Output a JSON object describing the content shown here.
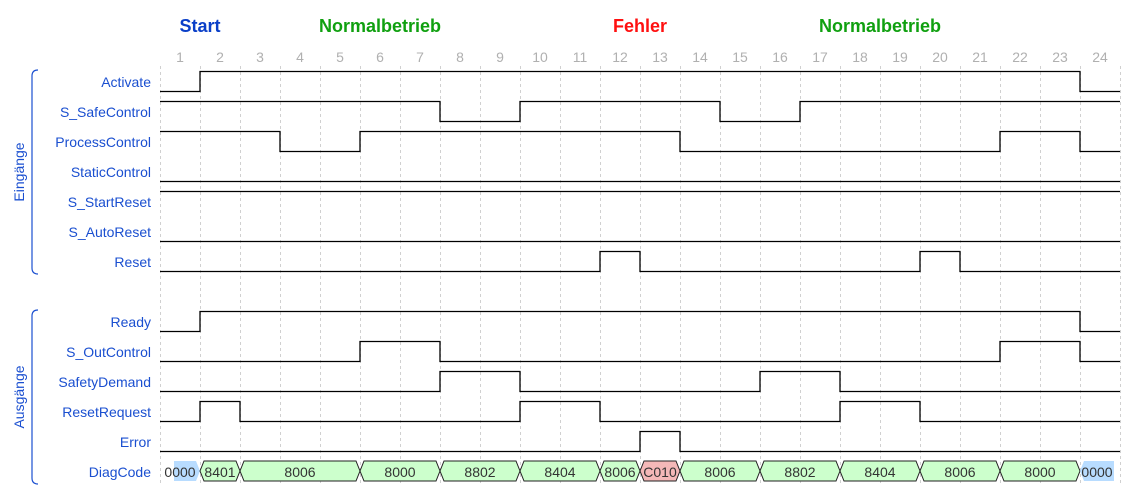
{
  "phases": [
    {
      "label": "Start",
      "from": 1,
      "to": 2,
      "color": "#0a3fc8"
    },
    {
      "label": "Normalbetrieb",
      "from": 3,
      "to": 9,
      "color": "#10a010"
    },
    {
      "label": "Fehler",
      "from": 12,
      "to": 13,
      "color": "#ff1010"
    },
    {
      "label": "Normalbetrieb",
      "from": 14,
      "to": 23,
      "color": "#10a010"
    }
  ],
  "columns": [
    "1",
    "2",
    "3",
    "4",
    "5",
    "6",
    "7",
    "8",
    "9",
    "10",
    "11",
    "12",
    "13",
    "14",
    "15",
    "16",
    "17",
    "18",
    "19",
    "20",
    "21",
    "22",
    "23",
    "24"
  ],
  "groups": [
    {
      "label": "Eingänge",
      "signals": [
        {
          "name": "Activate",
          "levels": [
            0,
            1,
            1,
            1,
            1,
            1,
            1,
            1,
            1,
            1,
            1,
            1,
            1,
            1,
            1,
            1,
            1,
            1,
            1,
            1,
            1,
            1,
            1,
            0
          ]
        },
        {
          "name": "S_SafeControl",
          "levels": [
            1,
            1,
            1,
            1,
            1,
            1,
            1,
            0,
            0,
            1,
            1,
            1,
            1,
            1,
            0,
            0,
            1,
            1,
            1,
            1,
            1,
            1,
            1,
            1
          ]
        },
        {
          "name": "ProcessControl",
          "levels": [
            1,
            1,
            1,
            0,
            0,
            1,
            1,
            1,
            1,
            1,
            1,
            1,
            1,
            0,
            0,
            0,
            0,
            0,
            0,
            0,
            0,
            1,
            1,
            0
          ]
        },
        {
          "name": "StaticControl",
          "levels": [
            0,
            0,
            0,
            0,
            0,
            0,
            0,
            0,
            0,
            0,
            0,
            0,
            0,
            0,
            0,
            0,
            0,
            0,
            0,
            0,
            0,
            0,
            0,
            0
          ]
        },
        {
          "name": "S_StartReset",
          "levels": [
            1,
            1,
            1,
            1,
            1,
            1,
            1,
            1,
            1,
            1,
            1,
            1,
            1,
            1,
            1,
            1,
            1,
            1,
            1,
            1,
            1,
            1,
            1,
            1
          ]
        },
        {
          "name": "S_AutoReset",
          "levels": [
            0,
            0,
            0,
            0,
            0,
            0,
            0,
            0,
            0,
            0,
            0,
            0,
            0,
            0,
            0,
            0,
            0,
            0,
            0,
            0,
            0,
            0,
            0,
            0
          ]
        },
        {
          "name": "Reset",
          "levels": [
            0,
            0,
            0,
            0,
            0,
            0,
            0,
            0,
            0,
            0,
            0,
            1,
            0,
            0,
            0,
            0,
            0,
            0,
            0,
            1,
            0,
            0,
            0,
            0
          ]
        }
      ]
    },
    {
      "label": "Ausgänge",
      "signals": [
        {
          "name": "Ready",
          "levels": [
            0,
            1,
            1,
            1,
            1,
            1,
            1,
            1,
            1,
            1,
            1,
            1,
            1,
            1,
            1,
            1,
            1,
            1,
            1,
            1,
            1,
            1,
            1,
            0
          ]
        },
        {
          "name": "S_OutControl",
          "levels": [
            0,
            0,
            0,
            0,
            0,
            1,
            1,
            0,
            0,
            0,
            0,
            0,
            0,
            0,
            0,
            0,
            0,
            0,
            0,
            0,
            0,
            1,
            1,
            0
          ]
        },
        {
          "name": "SafetyDemand",
          "levels": [
            0,
            0,
            0,
            0,
            0,
            0,
            0,
            1,
            1,
            0,
            0,
            0,
            0,
            0,
            0,
            1,
            1,
            0,
            0,
            0,
            0,
            0,
            0,
            0
          ]
        },
        {
          "name": "ResetRequest",
          "levels": [
            0,
            1,
            0,
            0,
            0,
            0,
            0,
            0,
            0,
            1,
            1,
            0,
            0,
            0,
            0,
            0,
            0,
            1,
            1,
            0,
            0,
            0,
            0,
            0
          ]
        },
        {
          "name": "Error",
          "levels": [
            0,
            0,
            0,
            0,
            0,
            0,
            0,
            0,
            0,
            0,
            0,
            0,
            1,
            0,
            0,
            0,
            0,
            0,
            0,
            0,
            0,
            0,
            0,
            0
          ]
        }
      ],
      "bus": {
        "name": "DiagCode",
        "segments": [
          {
            "value": "0000",
            "from": 1,
            "to": 1,
            "kind": "idle"
          },
          {
            "value": "8401",
            "from": 2,
            "to": 2,
            "kind": "ok"
          },
          {
            "value": "8006",
            "from": 3,
            "to": 5,
            "kind": "ok"
          },
          {
            "value": "8000",
            "from": 6,
            "to": 7,
            "kind": "ok"
          },
          {
            "value": "8802",
            "from": 8,
            "to": 9,
            "kind": "ok"
          },
          {
            "value": "8404",
            "from": 10,
            "to": 11,
            "kind": "ok"
          },
          {
            "value": "8006",
            "from": 12,
            "to": 12,
            "kind": "ok"
          },
          {
            "value": "C010",
            "from": 13,
            "to": 13,
            "kind": "error"
          },
          {
            "value": "8006",
            "from": 14,
            "to": 15,
            "kind": "ok"
          },
          {
            "value": "8802",
            "from": 16,
            "to": 17,
            "kind": "ok"
          },
          {
            "value": "8404",
            "from": 18,
            "to": 19,
            "kind": "ok"
          },
          {
            "value": "8006",
            "from": 20,
            "to": 21,
            "kind": "ok"
          },
          {
            "value": "8000",
            "from": 22,
            "to": 23,
            "kind": "ok"
          },
          {
            "value": "0000",
            "from": 24,
            "to": 24,
            "kind": "idle"
          }
        ]
      }
    }
  ],
  "colors": {
    "idle": "#b8dcff",
    "ok": "#ccffcc",
    "error": "#f4b8b8",
    "label": "#1a4fd0",
    "grid": "#d0d0d0"
  }
}
